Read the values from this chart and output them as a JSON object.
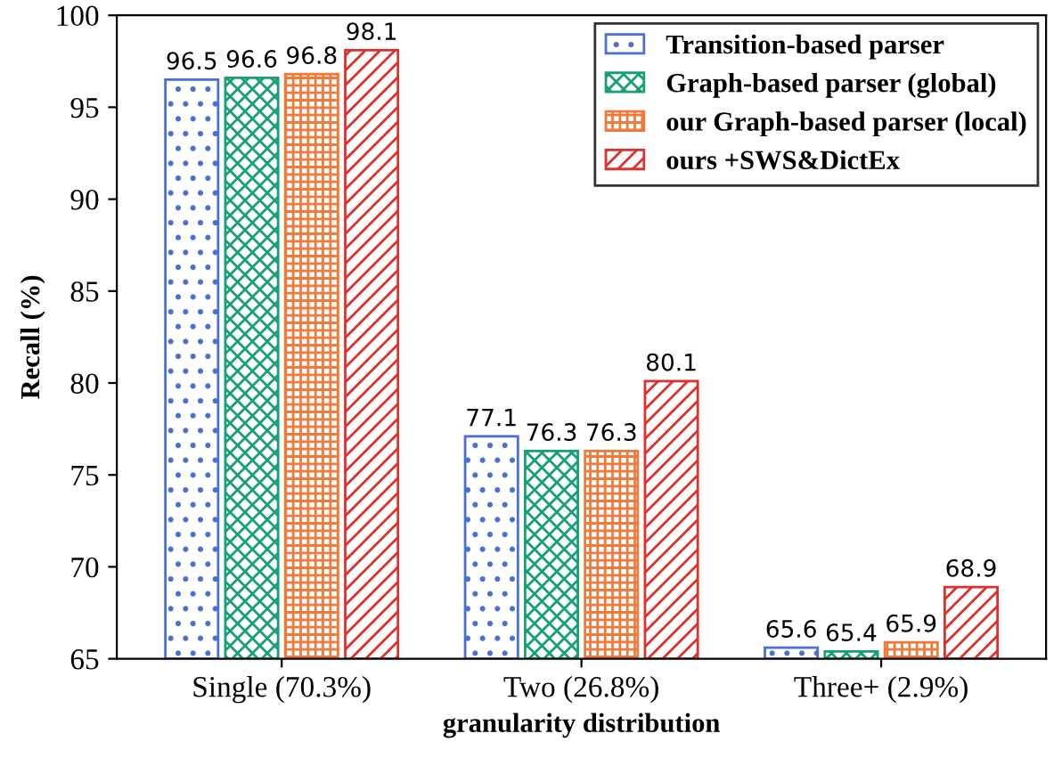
{
  "chart_data": {
    "type": "bar",
    "xlabel": "granularity distribution",
    "ylabel": "Recall (%)",
    "categories": [
      "Single (70.3%)",
      "Two (26.8%)",
      "Three+ (2.9%)"
    ],
    "series": [
      {
        "name": "Transition-based parser",
        "color": "#4a6fd6",
        "values": [
          96.5,
          77.1,
          65.6
        ]
      },
      {
        "name": "Graph-based parser (global)",
        "color": "#17a077",
        "values": [
          96.6,
          76.3,
          65.4
        ]
      },
      {
        "name": "our Graph-based parser (local)",
        "color": "#f07a3a",
        "values": [
          96.8,
          76.3,
          65.9
        ]
      },
      {
        "name": "ours +SWS&DictEx",
        "color": "#e0302c",
        "values": [
          98.1,
          80.1,
          68.9
        ]
      }
    ],
    "ylim": [
      65,
      100
    ],
    "yticks": [
      65,
      70,
      75,
      80,
      85,
      90,
      95,
      100
    ],
    "data_labels": true,
    "legend": "top right",
    "grid": false
  }
}
